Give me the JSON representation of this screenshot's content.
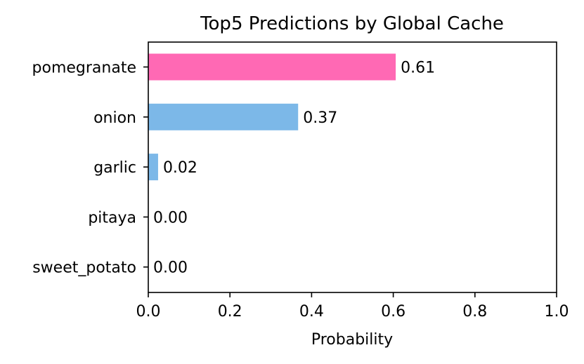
{
  "chart_data": {
    "type": "bar",
    "orientation": "horizontal",
    "title": "Top5 Predictions by Global Cache",
    "xlabel": "Probability",
    "ylabel": "",
    "xlim": [
      0,
      1
    ],
    "xticks": [
      "0.0",
      "0.2",
      "0.4",
      "0.6",
      "0.8",
      "1.0"
    ],
    "grid": false,
    "categories": [
      "pomegranate",
      "onion",
      "garlic",
      "pitaya",
      "sweet_potato"
    ],
    "values": [
      0.606,
      0.367,
      0.024,
      0.0,
      0.0
    ],
    "value_labels": [
      "0.61",
      "0.37",
      "0.02",
      "0.00",
      "0.00"
    ],
    "colors": [
      "#ff69b4",
      "#7cb8e8",
      "#7cb8e8",
      "#7cb8e8",
      "#7cb8e8"
    ],
    "highlight": "pomegranate"
  }
}
